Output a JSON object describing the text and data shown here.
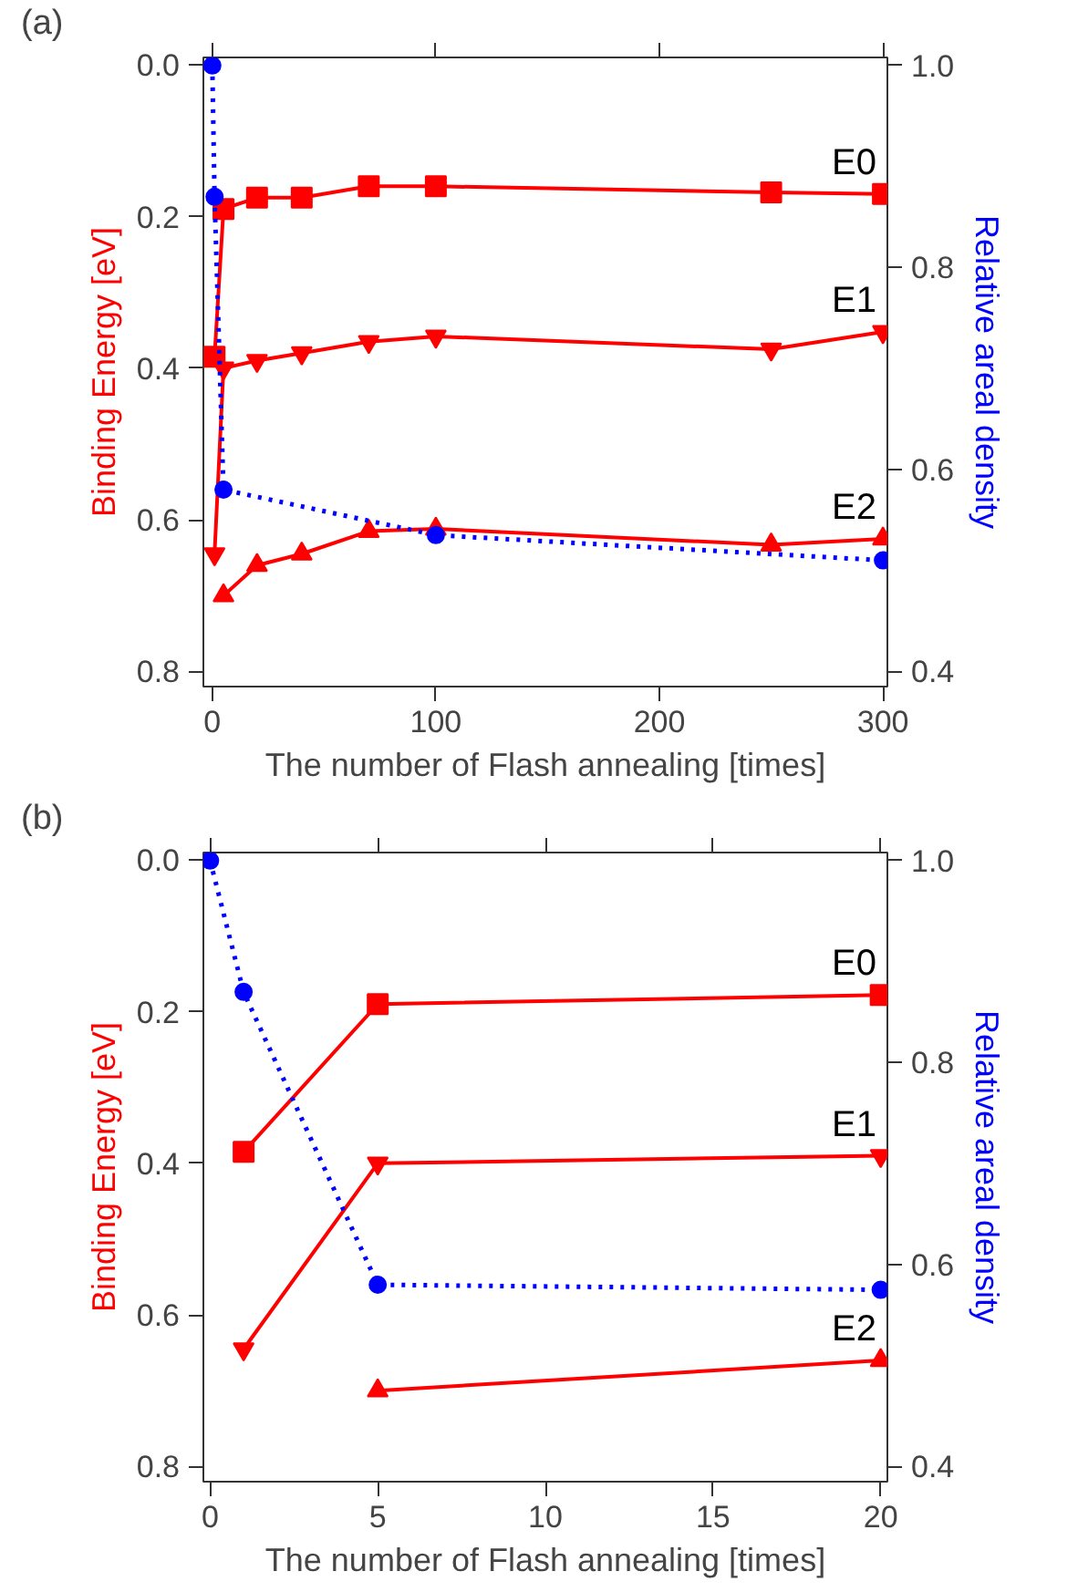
{
  "chart_data": [
    {
      "type": "line",
      "title": "(a)",
      "xlabel": "The number of Flash annealing [times]",
      "ylabel": "Binding Energy [eV]",
      "y2label": "Relative areal density",
      "xlim": [
        -4,
        302
      ],
      "xticks": [
        0,
        100,
        200,
        300
      ],
      "ylim": [
        0.82,
        -0.01
      ],
      "yticks": [
        {
          "value": 0,
          "label": "0.0"
        },
        0.2,
        0.4,
        0.6,
        0.8
      ],
      "y2lim": [
        0.385,
        1.008
      ],
      "y2ticks": [
        0.4,
        0.6,
        0.8,
        {
          "value": 1,
          "label": "1.0"
        }
      ],
      "grid": false,
      "series": [
        {
          "name": "E0",
          "color": "#ff0000",
          "marker": "square",
          "line_style": "solid",
          "x": [
            1,
            5,
            20,
            40,
            70,
            100,
            250,
            300
          ],
          "values": [
            0.385,
            0.19,
            0.175,
            0.175,
            0.16,
            0.16,
            0.168,
            0.17
          ]
        },
        {
          "name": "E1",
          "color": "#ff0000",
          "marker": "triangle_down",
          "line_style": "solid",
          "x": [
            1,
            5,
            20,
            40,
            70,
            100,
            250,
            300
          ],
          "values": [
            0.645,
            0.4,
            0.39,
            0.38,
            0.365,
            0.358,
            0.375,
            0.352
          ]
        },
        {
          "name": "E2",
          "color": "#ff0000",
          "marker": "triangle",
          "line_style": "solid",
          "x": [
            5,
            20,
            40,
            70,
            100,
            250,
            300
          ],
          "values": [
            0.7,
            0.66,
            0.645,
            0.615,
            0.612,
            0.633,
            0.625
          ]
        },
        {
          "color": "#0000ff",
          "marker": "circle",
          "line_style": "dotted",
          "axis": "y2",
          "x": [
            0,
            1,
            5,
            100,
            300
          ],
          "values": [
            1.0,
            0.87,
            0.58,
            0.535,
            0.51
          ]
        }
      ]
    },
    {
      "type": "line",
      "title": "(b)",
      "xlabel": "The number of Flash annealing [times]",
      "ylabel": "Binding Energy [eV]",
      "y2label": "Relative areal density",
      "xlim": [
        -0.2,
        20.2
      ],
      "xticks": [
        0,
        5,
        10,
        15,
        20
      ],
      "ylim": [
        0.82,
        -0.01
      ],
      "yticks": [
        {
          "value": 0,
          "label": "0.0"
        },
        0.2,
        0.4,
        0.6,
        0.8
      ],
      "y2lim": [
        0.385,
        1.008
      ],
      "y2ticks": [
        0.4,
        0.6,
        0.8,
        {
          "value": 1,
          "label": "1.0"
        }
      ],
      "grid": false,
      "series": [
        {
          "name": "E0",
          "color": "#ff0000",
          "marker": "square",
          "line_style": "solid",
          "x": [
            1,
            5,
            20
          ],
          "values": [
            0.385,
            0.19,
            0.178
          ]
        },
        {
          "name": "E1",
          "color": "#ff0000",
          "marker": "triangle_down",
          "line_style": "solid",
          "x": [
            1,
            5,
            20
          ],
          "values": [
            0.645,
            0.4,
            0.39
          ]
        },
        {
          "name": "E2",
          "color": "#ff0000",
          "marker": "triangle",
          "line_style": "solid",
          "x": [
            5,
            20
          ],
          "values": [
            0.7,
            0.66
          ]
        },
        {
          "color": "#0000ff",
          "marker": "circle",
          "line_style": "dotted",
          "axis": "y2",
          "x": [
            0,
            1,
            5,
            20
          ],
          "values": [
            1.0,
            0.87,
            0.58,
            0.575
          ]
        }
      ]
    }
  ]
}
